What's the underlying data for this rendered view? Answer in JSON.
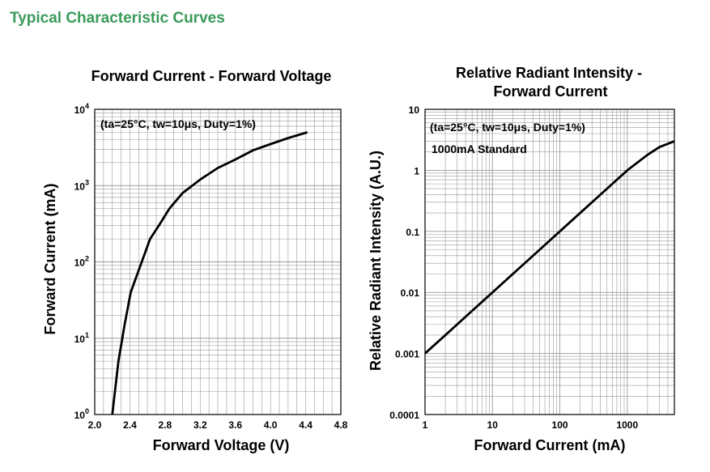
{
  "page": {
    "heading": "Typical Characteristic Curves"
  },
  "colors": {
    "heading": "#3a9a5a",
    "grid": "#9a9a9a",
    "curve": "#000000",
    "frame": "#000000"
  },
  "chart_data": [
    {
      "type": "line",
      "title": "Forward Current - Forward Voltage",
      "xlabel": "Forward Voltage (V)",
      "ylabel": "Forward Current (mA)",
      "annotation": "(ta=25°C, tw=10μs, Duty=1%)",
      "xscale": "linear",
      "yscale": "log",
      "xlim": [
        2.0,
        4.8
      ],
      "ylim": [
        1,
        10000
      ],
      "xticks": [
        "2.0",
        "2.4",
        "2.8",
        "3.2",
        "3.6",
        "4.0",
        "4.4",
        "4.8"
      ],
      "yticks": [
        {
          "base": "10",
          "exp": "0"
        },
        {
          "base": "10",
          "exp": "1"
        },
        {
          "base": "10",
          "exp": "2"
        },
        {
          "base": "10",
          "exp": "3"
        },
        {
          "base": "10",
          "exp": "4"
        }
      ],
      "grid": true,
      "series": [
        {
          "x": [
            2.2,
            2.27,
            2.34,
            2.41,
            2.52,
            2.63,
            2.73,
            2.85,
            3.0,
            3.2,
            3.4,
            3.6,
            3.8,
            4.0,
            4.2,
            4.42
          ],
          "y": [
            1,
            5,
            15,
            40,
            90,
            200,
            300,
            500,
            800,
            1200,
            1700,
            2200,
            2900,
            3500,
            4200,
            5000
          ]
        }
      ]
    },
    {
      "type": "line",
      "title": [
        "Relative Radiant Intensity -",
        "Forward Current"
      ],
      "xlabel": "Forward Current (mA)",
      "ylabel": "Relative Radiant Intensity (A.U.)",
      "annotations": [
        "(ta=25°C, tw=10μs, Duty=1%)",
        "1000mA Standard"
      ],
      "xscale": "log",
      "yscale": "log",
      "xlim": [
        1,
        5000
      ],
      "ylim": [
        0.0001,
        10
      ],
      "xticks": [
        "1",
        "10",
        "100",
        "1000"
      ],
      "yticks": [
        "0.0001",
        "0.001",
        "0.01",
        "0.1",
        "1",
        "10"
      ],
      "grid": true,
      "series": [
        {
          "x": [
            1,
            2,
            5,
            10,
            20,
            50,
            100,
            200,
            500,
            1000,
            2000,
            3000,
            5000
          ],
          "y": [
            0.001,
            0.002,
            0.005,
            0.01,
            0.02,
            0.05,
            0.1,
            0.2,
            0.5,
            1.0,
            1.8,
            2.4,
            3.0
          ]
        }
      ]
    }
  ]
}
